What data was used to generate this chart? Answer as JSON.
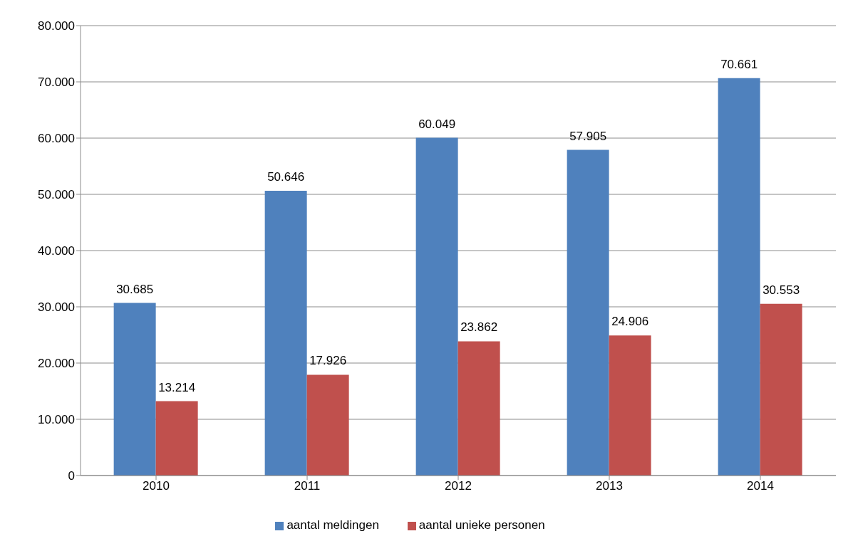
{
  "chart_data": {
    "type": "bar",
    "categories": [
      "2010",
      "2011",
      "2012",
      "2013",
      "2014"
    ],
    "series": [
      {
        "name": "aantal meldingen",
        "color": "#4f81bd",
        "values": [
          30685,
          50646,
          60049,
          57905,
          70661
        ],
        "value_labels": [
          "30.685",
          "50.646",
          "60.049",
          "57.905",
          "70.661"
        ]
      },
      {
        "name": "aantal unieke personen",
        "color": "#c0504d",
        "values": [
          13214,
          17926,
          23862,
          24906,
          30553
        ],
        "value_labels": [
          "13.214",
          "17.926",
          "23.862",
          "24.906",
          "30.553"
        ]
      }
    ],
    "ylim": [
      0,
      80000
    ],
    "yticks": [
      0,
      {
        "value": 10000,
        "label": "10.000"
      },
      {
        "value": 20000,
        "label": "20.000"
      },
      {
        "value": 30000,
        "label": "30.000"
      },
      {
        "value": 40000,
        "label": "40.000"
      },
      {
        "value": 50000,
        "label": "50.000"
      },
      {
        "value": 60000,
        "label": "60.000"
      },
      {
        "value": 70000,
        "label": "70.000"
      },
      {
        "value": 80000,
        "label": "80.000"
      }
    ],
    "grid": "y",
    "legend": "bottom"
  }
}
